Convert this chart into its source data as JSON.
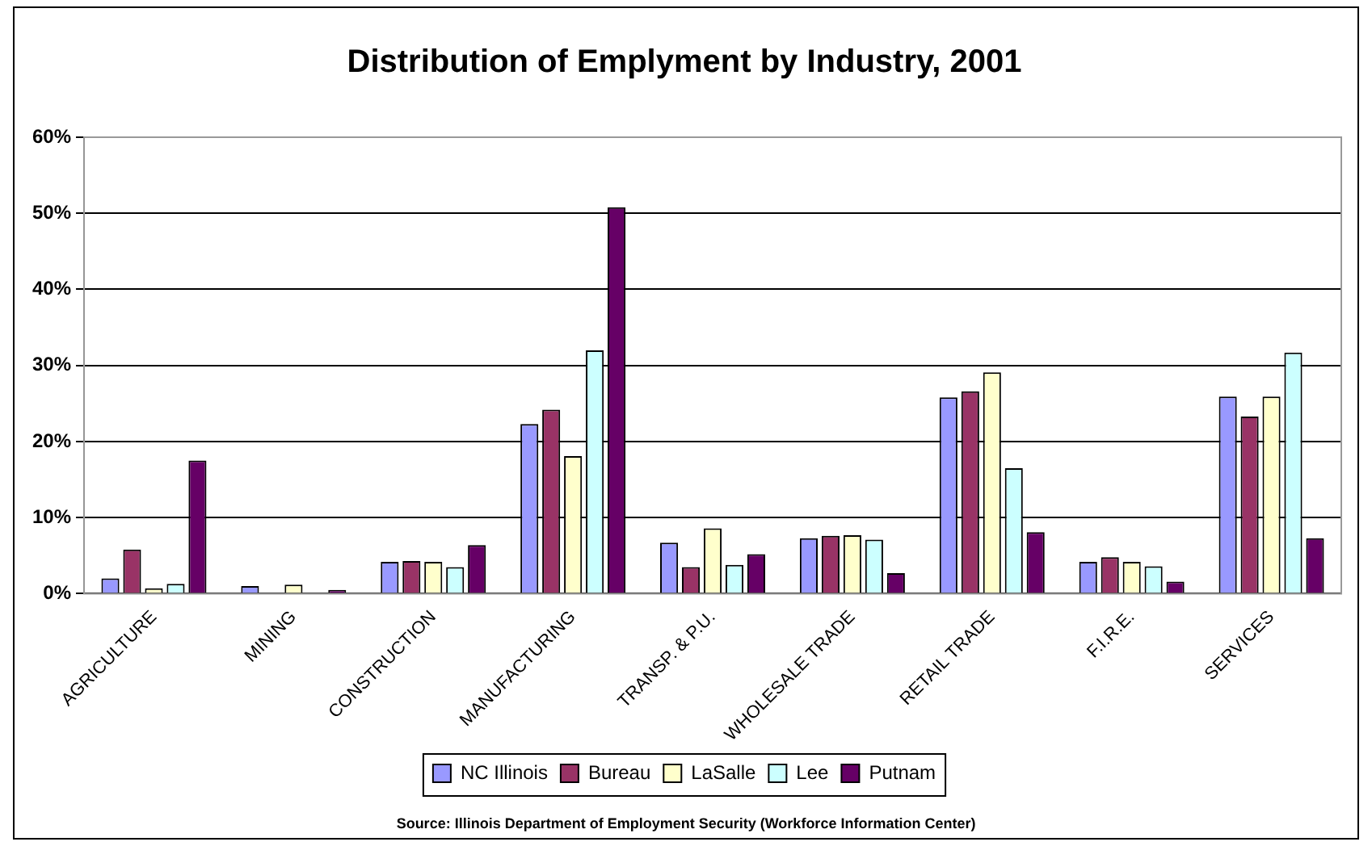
{
  "chart_data": {
    "type": "bar",
    "title": "Distribution of Emplyment by Industry, 2001",
    "categories": [
      "AGRICULTURE",
      "MINING",
      "CONSTRUCTION",
      "MANUFACTURING",
      "TRANSP. & P.U.",
      "WHOLESALE TRADE",
      "RETAIL TRADE",
      "F.I.R.E.",
      "SERVICES"
    ],
    "series": [
      {
        "name": "NC Illinois",
        "color": "#9999ff",
        "values": [
          2.0,
          1.0,
          4.2,
          22.3,
          6.7,
          7.3,
          25.8,
          4.2,
          25.9
        ]
      },
      {
        "name": "Bureau",
        "color": "#993366",
        "values": [
          5.8,
          0,
          4.3,
          24.2,
          3.5,
          7.6,
          26.6,
          4.8,
          23.3
        ]
      },
      {
        "name": "LaSalle",
        "color": "#ffffcc",
        "values": [
          0.7,
          1.2,
          4.2,
          18.1,
          8.6,
          7.7,
          29.1,
          4.2,
          25.9
        ]
      },
      {
        "name": "Lee",
        "color": "#ccffff",
        "values": [
          1.3,
          0,
          3.5,
          32.0,
          3.8,
          7.1,
          16.5,
          3.6,
          31.7
        ]
      },
      {
        "name": "Putnam",
        "color": "#660066",
        "values": [
          17.5,
          0.5,
          6.4,
          50.8,
          5.2,
          2.7,
          8.1,
          1.6,
          7.3
        ]
      }
    ],
    "ylim": [
      0,
      60
    ],
    "yticks": [
      {
        "value": 0,
        "label": "0%"
      },
      {
        "value": 10,
        "label": "10%"
      },
      {
        "value": 20,
        "label": "20%"
      },
      {
        "value": 30,
        "label": "30%"
      },
      {
        "value": 40,
        "label": "40%"
      },
      {
        "value": 50,
        "label": "50%"
      },
      {
        "value": 60,
        "label": "60%"
      }
    ],
    "grid": "y",
    "legend": "bottom",
    "annotations": [
      "Source: Illinois Department of Employment Security (Workforce Information Center)"
    ]
  }
}
